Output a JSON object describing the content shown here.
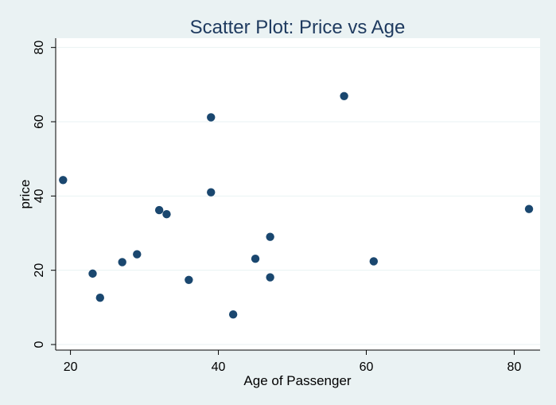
{
  "chart_data": {
    "type": "scatter",
    "title": "Scatter Plot: Price vs Age",
    "xlabel": "Age of Passenger",
    "ylabel": "price",
    "xlim": [
      18,
      83.5
    ],
    "ylim": [
      -1.5,
      82.5
    ],
    "xticks": [
      20,
      40,
      60,
      80
    ],
    "yticks": [
      0,
      20,
      40,
      60,
      80
    ],
    "grid": "horizontal",
    "colors": {
      "background": "#eaf2f3",
      "plot_area": "#ffffff",
      "marker": "#1a476f",
      "gridline": "#eaf2f3",
      "title": "#1e3a5f"
    },
    "points": [
      {
        "x": 19,
        "y": 44.3
      },
      {
        "x": 23,
        "y": 19.1
      },
      {
        "x": 24,
        "y": 12.6
      },
      {
        "x": 27,
        "y": 22.2
      },
      {
        "x": 29,
        "y": 24.3
      },
      {
        "x": 32,
        "y": 36.2
      },
      {
        "x": 33,
        "y": 35.1
      },
      {
        "x": 36,
        "y": 17.4
      },
      {
        "x": 39,
        "y": 61.2
      },
      {
        "x": 39,
        "y": 41.0
      },
      {
        "x": 42,
        "y": 8.1
      },
      {
        "x": 45,
        "y": 23.1
      },
      {
        "x": 47,
        "y": 29.0
      },
      {
        "x": 47,
        "y": 18.1
      },
      {
        "x": 57,
        "y": 66.9
      },
      {
        "x": 61,
        "y": 22.4
      },
      {
        "x": 82,
        "y": 36.5
      }
    ]
  }
}
